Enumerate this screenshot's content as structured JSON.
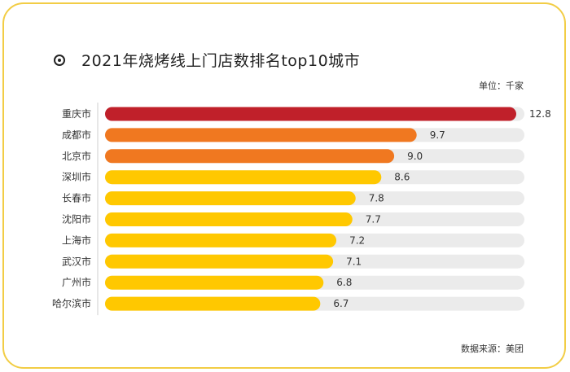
{
  "chart_data": {
    "type": "bar",
    "orientation": "horizontal",
    "title": "2021年烧烤线上门店数排名top10城市",
    "unit_label": "单位：千家",
    "source_label": "数据来源：美团",
    "categories": [
      "重庆市",
      "成都市",
      "北京市",
      "深圳市",
      "长春市",
      "沈阳市",
      "上海市",
      "武汉市",
      "广州市",
      "哈尔滨市"
    ],
    "values": [
      12.8,
      9.7,
      9.0,
      8.6,
      7.8,
      7.7,
      7.2,
      7.1,
      6.8,
      6.7
    ],
    "value_labels": [
      "12.8",
      "9.7",
      "9.0",
      "8.6",
      "7.8",
      "7.7",
      "7.2",
      "7.1",
      "6.8",
      "6.7"
    ],
    "xlim": [
      0,
      12.8
    ],
    "colors": {
      "rank1": "#c0202a",
      "rank2_3": "#f07820",
      "others": "#ffc800",
      "track": "#ebebeb"
    }
  }
}
